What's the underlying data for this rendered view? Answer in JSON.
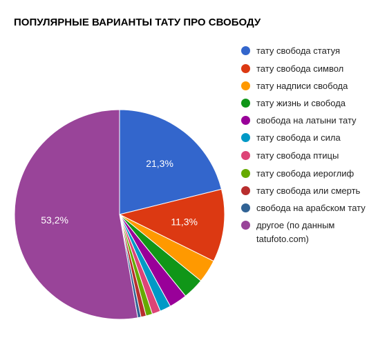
{
  "chart_data": {
    "type": "pie",
    "title": "ПОПУЛЯРНЫЕ ВАРИАНТЫ ТАТУ ПРО СВОБОДУ",
    "legend_position": "right",
    "start_angle_deg": 0,
    "direction": "clockwise",
    "slices": [
      {
        "label": "тату свобода статуя",
        "value": 21.3,
        "display": "21,3%",
        "color": "#3366cc"
      },
      {
        "label": "тату свобода символ",
        "value": 11.3,
        "display": "11,3%",
        "color": "#dc3912"
      },
      {
        "label": "тату надписи свобода",
        "value": 3.6,
        "display": "",
        "color": "#ff9900"
      },
      {
        "label": "тату жизнь и свобода",
        "value": 3.3,
        "display": "",
        "color": "#109618"
      },
      {
        "label": "свобода на латыни тату",
        "value": 2.8,
        "display": "",
        "color": "#990099"
      },
      {
        "label": "тату свобода и сила",
        "value": 1.7,
        "display": "",
        "color": "#0099c6"
      },
      {
        "label": "тату свобода птицы",
        "value": 1.3,
        "display": "",
        "color": "#dd4477"
      },
      {
        "label": "тату свобода иероглиф",
        "value": 1.0,
        "display": "",
        "color": "#66aa00"
      },
      {
        "label": "тату свобода или смерть",
        "value": 0.8,
        "display": "",
        "color": "#b82e2e"
      },
      {
        "label": "свобода на арабском тату",
        "value": 0.5,
        "display": "",
        "color": "#316395"
      },
      {
        "label": "другое (по данным tatufoto.com)",
        "value": 53.2,
        "display": "53,2%",
        "color": "#994499"
      }
    ]
  }
}
